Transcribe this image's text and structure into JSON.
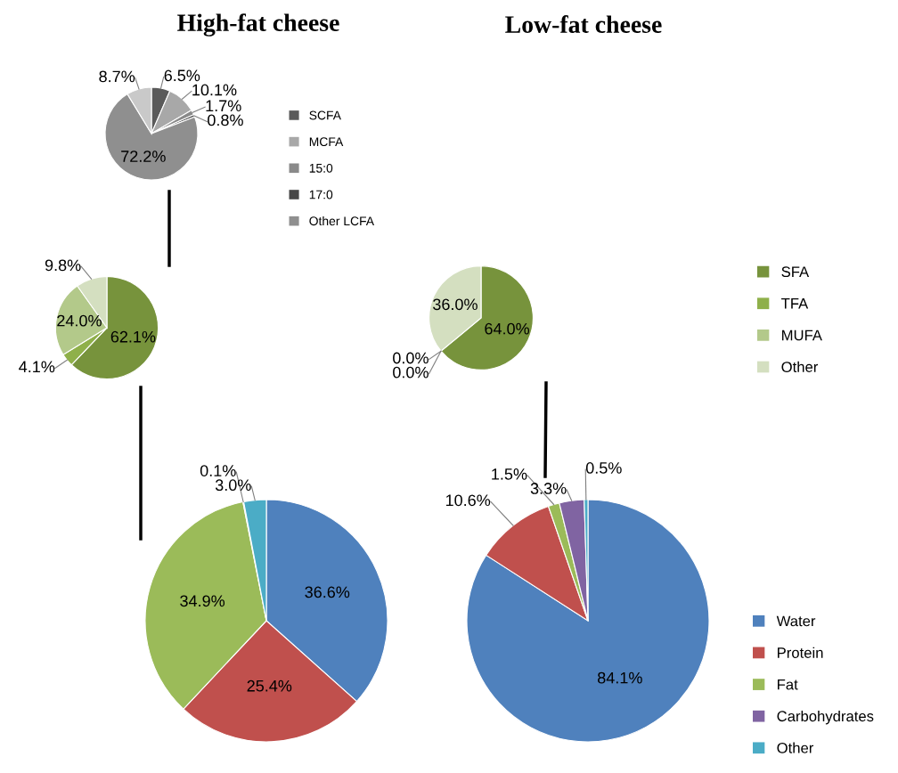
{
  "chart_data": [
    {
      "type": "pie",
      "title": "High-fat cheese",
      "categories": [
        "SCFA",
        "MCFA",
        "15:0",
        "17:0",
        "Other LCFA",
        null
      ],
      "values": [
        6.5,
        10.1,
        1.7,
        0.8,
        72.2,
        8.7
      ],
      "value_labels": [
        "6.5%",
        "10.1%",
        "1.7%",
        "0.8%",
        "72.2%",
        "8.7%"
      ],
      "colors": [
        "#5a5a5a",
        "#a8a8a8",
        "#8a8a8a",
        "#474747",
        "#8f8f8f",
        "#c9c9c9"
      ],
      "legend": "right"
    },
    {
      "type": "pie",
      "categories": [
        "SFA",
        "TFA",
        "MUFA",
        "Other"
      ],
      "values": [
        62.1,
        4.1,
        24.0,
        9.8
      ],
      "value_labels": [
        "62.1%",
        "4.1%",
        "24.0%",
        "9.8%"
      ],
      "colors": [
        "#77933c",
        "#8fb04a",
        "#b3c98a",
        "#d4dfc0"
      ],
      "legend": "right"
    },
    {
      "type": "pie",
      "categories": [
        "Water",
        "Protein",
        "Fat",
        "Carbohydrates",
        "Other"
      ],
      "values": [
        36.6,
        25.4,
        34.9,
        0.1,
        3.0
      ],
      "value_labels": [
        "36.6%",
        "25.4%",
        "34.9%",
        "0.1%",
        "3.0%"
      ],
      "colors": [
        "#4f81bd",
        "#c0504d",
        "#9bbb59",
        "#8064a2",
        "#4bacc6"
      ],
      "legend": "right"
    },
    {
      "type": "pie",
      "title": "Low-fat cheese",
      "categories": [
        null,
        null,
        null,
        null
      ],
      "values": [
        64.0,
        0.0,
        0.0,
        36.0
      ],
      "value_labels": [
        "64.0%",
        "0.0%",
        "0.0%",
        "36.0%"
      ],
      "colors": [
        "#77933c",
        "#8fb04a",
        "#b3c98a",
        "#d4dfc0"
      ]
    },
    {
      "type": "pie",
      "categories": [
        null,
        null,
        null,
        null,
        null
      ],
      "values": [
        84.1,
        10.6,
        1.5,
        3.3,
        0.5
      ],
      "value_labels": [
        "84.1%",
        "10.6%",
        "1.5%",
        "3.3%",
        "0.5%"
      ],
      "colors": [
        "#4f81bd",
        "#c0504d",
        "#9bbb59",
        "#8064a2",
        "#4bacc6"
      ]
    }
  ]
}
